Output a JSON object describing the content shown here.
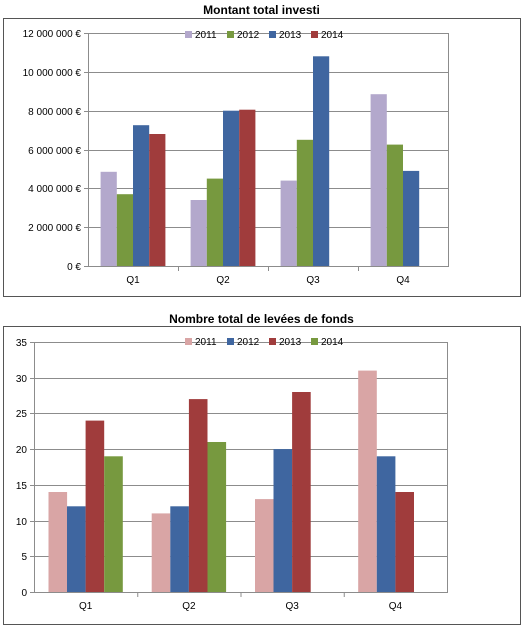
{
  "chart_data": [
    {
      "type": "bar",
      "title": "Montant total investi",
      "categories": [
        "Q1",
        "Q2",
        "Q3",
        "Q4"
      ],
      "ylim": [
        0,
        12000000
      ],
      "yticks": [
        0,
        2000000,
        4000000,
        6000000,
        8000000,
        10000000,
        12000000
      ],
      "ytick_labels": [
        "0 €",
        "2 000 000 €",
        "4 000 000 €",
        "6 000 000 €",
        "8 000 000 €",
        "10 000 000 €",
        "12 000 000 €"
      ],
      "legend_position": "top-right",
      "grid": true,
      "series": [
        {
          "name": "2011",
          "color": "#b3a8cc",
          "values": [
            4850000,
            3400000,
            4400000,
            8850000
          ]
        },
        {
          "name": "2012",
          "color": "#77993f",
          "values": [
            3700000,
            4500000,
            6500000,
            6250000
          ]
        },
        {
          "name": "2013",
          "color": "#3f66a0",
          "values": [
            7250000,
            8000000,
            10800000,
            4900000
          ]
        },
        {
          "name": "2014",
          "color": "#a03c3c",
          "values": [
            6800000,
            8050000,
            null,
            null
          ]
        }
      ]
    },
    {
      "type": "bar",
      "title": "Nombre total de levées de fonds",
      "categories": [
        "Q1",
        "Q2",
        "Q3",
        "Q4"
      ],
      "ylim": [
        0,
        35
      ],
      "yticks": [
        0,
        5,
        10,
        15,
        20,
        25,
        30,
        35
      ],
      "ytick_labels": [
        "0",
        "5",
        "10",
        "15",
        "20",
        "25",
        "30",
        "35"
      ],
      "legend_position": "top-right",
      "grid": true,
      "series": [
        {
          "name": "2011",
          "color": "#d9a5a5",
          "values": [
            14,
            11,
            13,
            31
          ]
        },
        {
          "name": "2012",
          "color": "#3f66a0",
          "values": [
            12,
            12,
            20,
            19
          ]
        },
        {
          "name": "2013",
          "color": "#a03c3c",
          "values": [
            24,
            27,
            28,
            14
          ]
        },
        {
          "name": "2014",
          "color": "#77993f",
          "values": [
            19,
            21,
            null,
            null
          ]
        }
      ]
    }
  ]
}
